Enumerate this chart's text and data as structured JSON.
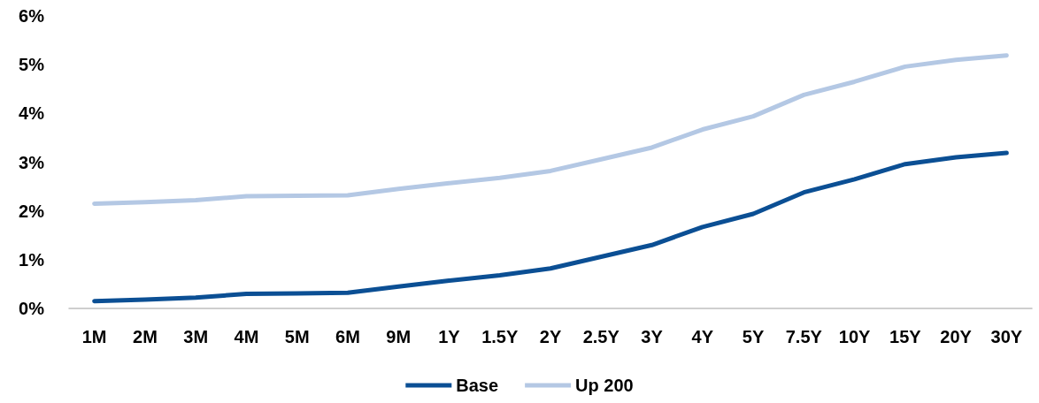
{
  "chart_data": {
    "type": "line",
    "categories": [
      "1M",
      "2M",
      "3M",
      "4M",
      "5M",
      "6M",
      "9M",
      "1Y",
      "1.5Y",
      "2Y",
      "2.5Y",
      "3Y",
      "4Y",
      "5Y",
      "7.5Y",
      "10Y",
      "15Y",
      "20Y",
      "30Y"
    ],
    "series": [
      {
        "name": "Base",
        "color": "#0b4f94",
        "values": [
          0.15,
          0.18,
          0.22,
          0.3,
          0.31,
          0.32,
          0.45,
          0.57,
          0.68,
          0.82,
          1.06,
          1.3,
          1.67,
          1.94,
          2.38,
          2.65,
          2.96,
          3.1,
          3.19
        ]
      },
      {
        "name": "Up 200",
        "color": "#b4c8e4",
        "values": [
          2.15,
          2.18,
          2.22,
          2.3,
          2.31,
          2.32,
          2.45,
          2.57,
          2.68,
          2.82,
          3.06,
          3.3,
          3.67,
          3.94,
          4.38,
          4.65,
          4.96,
          5.1,
          5.19
        ]
      }
    ],
    "ylim": [
      0,
      6
    ],
    "yticks": [
      {
        "value": 0,
        "label": "0%"
      },
      {
        "value": 1,
        "label": "1%"
      },
      {
        "value": 2,
        "label": "2%"
      },
      {
        "value": 3,
        "label": "3%"
      },
      {
        "value": 4,
        "label": "4%"
      },
      {
        "value": 5,
        "label": "5%"
      },
      {
        "value": 6,
        "label": "6%"
      }
    ],
    "grid": false,
    "legend": "bottom",
    "marker": "none",
    "line_style": "solid"
  }
}
